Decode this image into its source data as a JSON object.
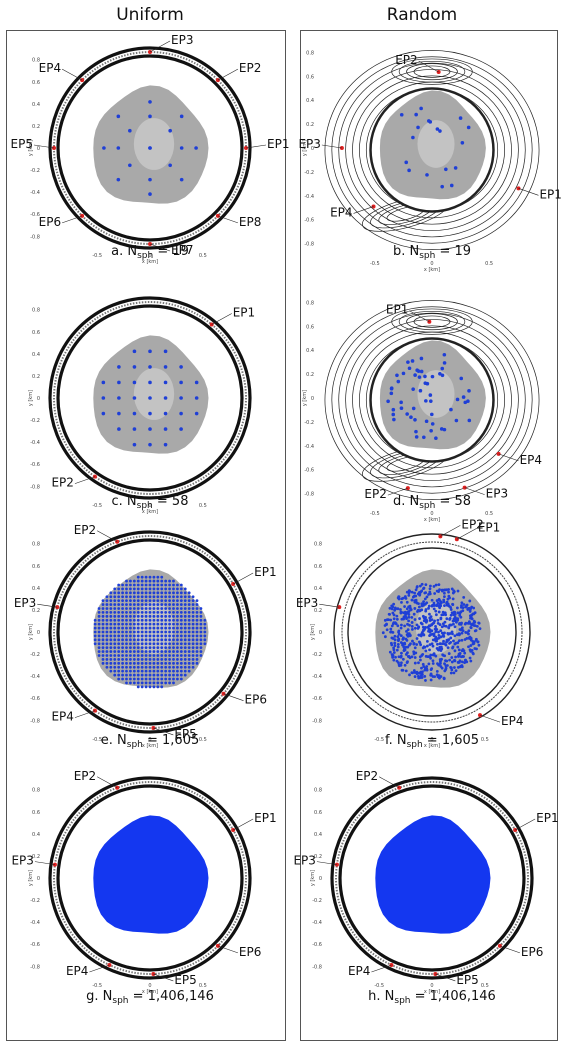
{
  "columns": {
    "left": "Uniform",
    "right": "Random"
  },
  "axis": {
    "xlabel": "x [km]",
    "ylabel": "y [km]"
  },
  "panels": [
    {
      "id": "a",
      "column": "left",
      "row": 0,
      "style": "uniform-ring",
      "caption_prefix": "a. N",
      "caption_sub": "sph",
      "caption_value": " = 19",
      "points": "grid-sparse",
      "nsph": 19,
      "eps": [
        {
          "label": "EP1",
          "angle": 0,
          "side": "right"
        },
        {
          "label": "EP2",
          "angle": 45,
          "side": "right"
        },
        {
          "label": "EP3",
          "angle": 90,
          "side": "right"
        },
        {
          "label": "EP4",
          "angle": 135,
          "side": "left"
        },
        {
          "label": "EP5",
          "angle": 180,
          "side": "left"
        },
        {
          "label": "EP6",
          "angle": 225,
          "side": "left"
        },
        {
          "label": "EP7",
          "angle": 270,
          "side": "right"
        },
        {
          "label": "EP8",
          "angle": 315,
          "side": "right"
        }
      ]
    },
    {
      "id": "b",
      "column": "right",
      "row": 0,
      "style": "random-contour",
      "caption_prefix": "b. N",
      "caption_sub": "sph",
      "caption_value": " = 19",
      "points": "random-sparse",
      "nsph": 19,
      "eps": [
        {
          "label": "EP1",
          "angle": -25,
          "r": 0.9,
          "side": "right"
        },
        {
          "label": "EP2",
          "angle": 85,
          "r": 0.72,
          "side": "left"
        },
        {
          "label": "EP3",
          "angle": 180,
          "r": 0.85,
          "side": "left"
        },
        {
          "label": "EP4",
          "angle": 225,
          "r": 0.78,
          "side": "left"
        }
      ]
    },
    {
      "id": "c",
      "column": "left",
      "row": 1,
      "style": "uniform-ring",
      "caption_prefix": "c. N",
      "caption_sub": "sph",
      "caption_value": " = 58",
      "points": "grid-medium",
      "nsph": 58,
      "eps": [
        {
          "label": "EP1",
          "angle": 50,
          "side": "right"
        },
        {
          "label": "EP2",
          "angle": 235,
          "side": "left"
        }
      ]
    },
    {
      "id": "d",
      "column": "right",
      "row": 1,
      "style": "random-contour",
      "caption_prefix": "d. N",
      "caption_sub": "sph",
      "caption_value": " = 58",
      "points": "random-medium",
      "nsph": 58,
      "eps": [
        {
          "label": "EP1",
          "angle": 92,
          "r": 0.72,
          "side": "left"
        },
        {
          "label": "EP2",
          "angle": 255,
          "r": 0.88,
          "side": "left"
        },
        {
          "label": "EP3",
          "angle": 290,
          "r": 0.9,
          "side": "right"
        },
        {
          "label": "EP4",
          "angle": 320,
          "r": 0.82,
          "side": "right"
        }
      ]
    },
    {
      "id": "e",
      "column": "left",
      "row": 2,
      "style": "uniform-ring",
      "caption_prefix": "e. N",
      "caption_sub": "sph",
      "caption_value": " = 1,605",
      "points": "grid-dense",
      "nsph": 1605,
      "eps": [
        {
          "label": "EP1",
          "angle": 30,
          "side": "right"
        },
        {
          "label": "EP2",
          "angle": 110,
          "side": "left"
        },
        {
          "label": "EP3",
          "angle": 165,
          "side": "left"
        },
        {
          "label": "EP4",
          "angle": 235,
          "side": "left"
        },
        {
          "label": "EP5",
          "angle": 272,
          "side": "right"
        },
        {
          "label": "EP6",
          "angle": 320,
          "side": "right"
        }
      ]
    },
    {
      "id": "f",
      "column": "right",
      "row": 2,
      "style": "random-ring",
      "caption_prefix": "f. N",
      "caption_sub": "sph",
      "caption_value": " = 1,605",
      "points": "random-dense",
      "nsph": 1605,
      "eps": [
        {
          "label": "EP1",
          "angle": 75,
          "side": "right"
        },
        {
          "label": "EP2",
          "angle": 85,
          "side": "right"
        },
        {
          "label": "EP3",
          "angle": 165,
          "side": "left"
        },
        {
          "label": "EP4",
          "angle": 300,
          "side": "right"
        }
      ]
    },
    {
      "id": "g",
      "column": "left",
      "row": 3,
      "style": "uniform-ring",
      "caption_prefix": "g. N",
      "caption_sub": "sph",
      "caption_value": " = 1,406,146",
      "points": "solid",
      "nsph": 1406146,
      "eps": [
        {
          "label": "EP1",
          "angle": 30,
          "side": "right"
        },
        {
          "label": "EP2",
          "angle": 110,
          "side": "left"
        },
        {
          "label": "EP3",
          "angle": 172,
          "side": "left"
        },
        {
          "label": "EP4",
          "angle": 245,
          "side": "left"
        },
        {
          "label": "EP5",
          "angle": 272,
          "side": "right"
        },
        {
          "label": "EP6",
          "angle": 315,
          "side": "right"
        }
      ]
    },
    {
      "id": "h",
      "column": "right",
      "row": 3,
      "style": "uniform-ring",
      "caption_prefix": "h. N",
      "caption_sub": "sph",
      "caption_value": " = 1,406,146",
      "points": "solid",
      "nsph": 1406146,
      "eps": [
        {
          "label": "EP1",
          "angle": 30,
          "side": "right"
        },
        {
          "label": "EP2",
          "angle": 110,
          "side": "left"
        },
        {
          "label": "EP3",
          "angle": 172,
          "side": "left"
        },
        {
          "label": "EP4",
          "angle": 245,
          "side": "left"
        },
        {
          "label": "EP5",
          "angle": 272,
          "side": "right"
        },
        {
          "label": "EP6",
          "angle": 315,
          "side": "right"
        }
      ]
    }
  ],
  "colors": {
    "sphere": "#a9a9a9",
    "points": "#1f3fd6",
    "solid": "#1437f0",
    "ep": "#e02020",
    "ring": "#111111",
    "frame": "#555555"
  }
}
